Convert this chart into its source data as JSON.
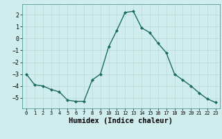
{
  "x": [
    0,
    1,
    2,
    3,
    4,
    5,
    6,
    7,
    8,
    9,
    10,
    11,
    12,
    13,
    14,
    15,
    16,
    17,
    18,
    19,
    20,
    21,
    22,
    23
  ],
  "y": [
    -3.0,
    -3.9,
    -4.0,
    -4.3,
    -4.5,
    -5.2,
    -5.3,
    -5.3,
    -3.5,
    -3.0,
    -0.7,
    0.7,
    2.2,
    2.3,
    0.9,
    0.5,
    -0.4,
    -1.2,
    -3.0,
    -3.5,
    -4.0,
    -4.6,
    -5.1,
    -5.4
  ],
  "line_color": "#1a6b5e",
  "marker": "D",
  "marker_size": 2,
  "bg_color": "#d0eded",
  "grid_color": "#b8d8d5",
  "xlabel": "Humidex (Indice chaleur)",
  "xlim": [
    -0.5,
    23.5
  ],
  "ylim": [
    -5.9,
    2.9
  ],
  "yticks": [
    -5,
    -4,
    -3,
    -2,
    -1,
    0,
    1,
    2
  ],
  "xticks": [
    0,
    1,
    2,
    3,
    4,
    5,
    6,
    7,
    8,
    9,
    10,
    11,
    12,
    13,
    14,
    15,
    16,
    17,
    18,
    19,
    20,
    21,
    22,
    23
  ],
  "tick_fontsize": 6,
  "xlabel_fontsize": 7.5,
  "line_width": 1.0
}
